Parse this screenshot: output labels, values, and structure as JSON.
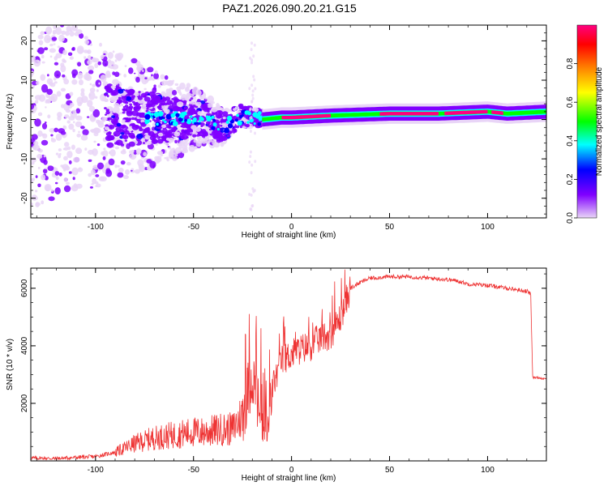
{
  "title": "PAZ1.2026.090.20.21.G15",
  "chart_data": [
    {
      "type": "heatmap",
      "xlabel": "Height of straight line (km)",
      "ylabel": "Frequency (Hz)",
      "xlim": [
        -133,
        130
      ],
      "ylim": [
        -25,
        24
      ],
      "xticks": [
        -100,
        -50,
        0,
        50,
        100
      ],
      "yticks": [
        -20,
        -10,
        0,
        10,
        20
      ],
      "colorbar": {
        "label": "Normalized spectral amplitude",
        "range": [
          0,
          1
        ],
        "ticks": [
          0.0,
          0.2,
          0.4,
          0.6,
          0.8
        ],
        "colors": [
          "#e9d5f7",
          "#8000ff",
          "#0000ff",
          "#00ffff",
          "#00ff00",
          "#ffff00",
          "#ff8000",
          "#ff0000",
          "#ff0080"
        ]
      },
      "ridge": [
        {
          "x": -120,
          "y": 3.5
        },
        {
          "x": -100,
          "y": 1.5
        },
        {
          "x": -80,
          "y": 0.5
        },
        {
          "x": -60,
          "y": 0.0
        },
        {
          "x": -45,
          "y": 0.5
        },
        {
          "x": -35,
          "y": -2.0
        },
        {
          "x": -25,
          "y": 1.0
        },
        {
          "x": -15,
          "y": 0.0
        },
        {
          "x": -5,
          "y": 0.5
        },
        {
          "x": 0,
          "y": 0.5
        },
        {
          "x": 20,
          "y": 1.0
        },
        {
          "x": 50,
          "y": 1.5
        },
        {
          "x": 75,
          "y": 1.5
        },
        {
          "x": 100,
          "y": 2.0
        },
        {
          "x": 110,
          "y": 1.5
        },
        {
          "x": 130,
          "y": 2.0
        }
      ]
    },
    {
      "type": "line",
      "xlabel": "Height of straight line (km)",
      "ylabel": "SNR (10 * v/v)",
      "xlim": [
        -133,
        130
      ],
      "ylim": [
        0,
        6700
      ],
      "xticks": [
        -100,
        -50,
        0,
        50,
        100
      ],
      "yticks": [
        2000,
        4000,
        6000
      ],
      "color": "#ee3333",
      "series": [
        {
          "x": [
            -133,
            -120,
            -110,
            -100,
            -90,
            -85,
            -80,
            -75,
            -70,
            -65,
            -60,
            -55,
            -50,
            -45,
            -40,
            -35,
            -30,
            -25,
            -22,
            -20,
            -18,
            -15,
            -12,
            -10,
            -5,
            0,
            5,
            10,
            15,
            20,
            25,
            30,
            35,
            40,
            50,
            60,
            70,
            80,
            85,
            90,
            100,
            110,
            115,
            120,
            122,
            123,
            125,
            130
          ],
          "y": [
            100,
            80,
            120,
            150,
            300,
            450,
            600,
            700,
            800,
            850,
            900,
            950,
            1000,
            1000,
            1050,
            1100,
            1100,
            1600,
            2500,
            3000,
            2300,
            1200,
            900,
            2500,
            3500,
            3700,
            3900,
            4000,
            4300,
            4400,
            5000,
            6000,
            6200,
            6350,
            6400,
            6400,
            6350,
            6300,
            6250,
            6150,
            6100,
            6000,
            5950,
            5900,
            5800,
            2900,
            2900,
            2850
          ]
        }
      ]
    }
  ]
}
